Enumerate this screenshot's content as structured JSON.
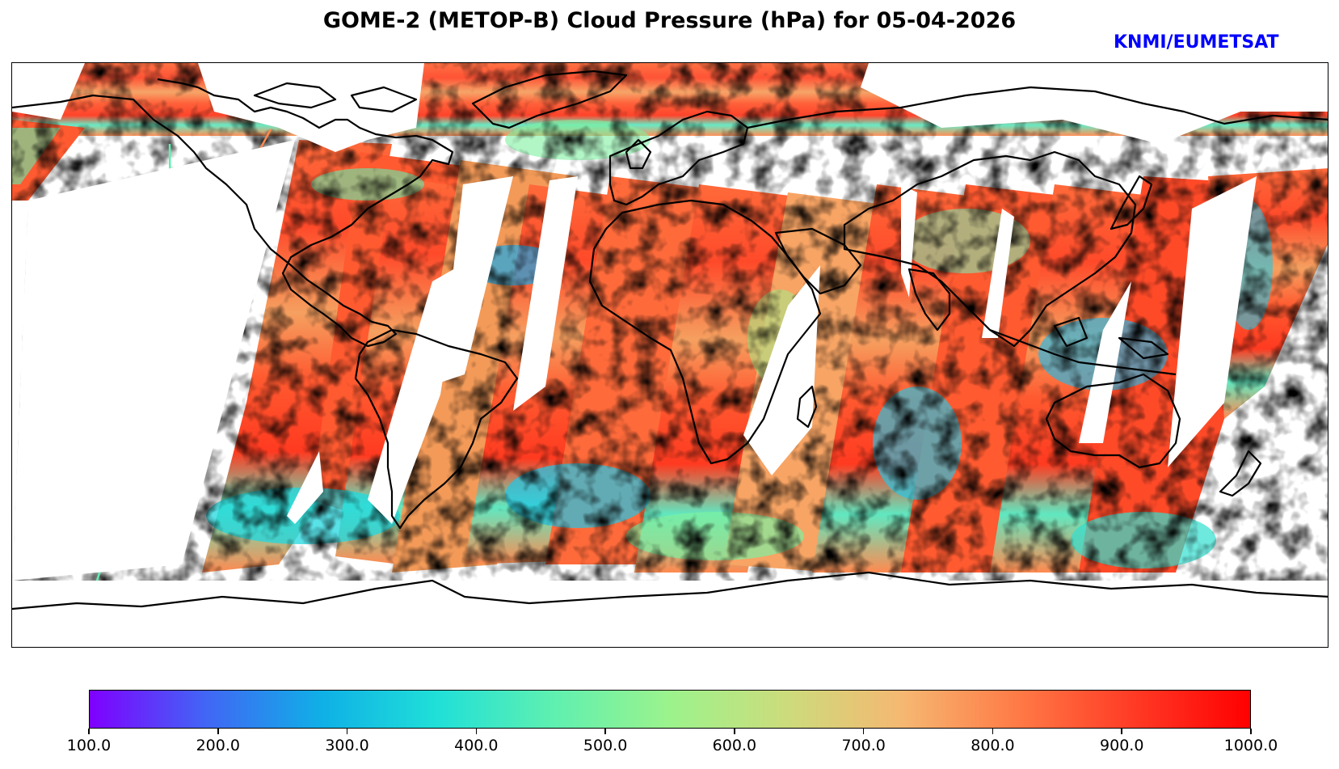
{
  "title": "GOME-2 (METOP-B) Cloud Pressure (hPa) for 05-04-2026",
  "credit": "KNMI/EUMETSAT",
  "map": {
    "variable": "Cloud Pressure",
    "units": "hPa",
    "projection": "plate-carree",
    "features": [
      "coastlines",
      "swath-data",
      "orbit-gaps"
    ],
    "coastline_color": "#000000"
  },
  "colorbar": {
    "cmap": "rainbow",
    "vmin": 100.0,
    "vmax": 1000.0,
    "stops": [
      "#7f00ff",
      "#4166f5",
      "#0fb0e6",
      "#20e0d8",
      "#5ff0b0",
      "#9cf38c",
      "#ccdc7c",
      "#f5b872",
      "#ff7a46",
      "#ff3a25",
      "#ff0000"
    ],
    "ticks": [
      {
        "value": 100.0,
        "label": "100.0"
      },
      {
        "value": 200.0,
        "label": "200.0"
      },
      {
        "value": 300.0,
        "label": "300.0"
      },
      {
        "value": 400.0,
        "label": "400.0"
      },
      {
        "value": 500.0,
        "label": "500.0"
      },
      {
        "value": 600.0,
        "label": "600.0"
      },
      {
        "value": 700.0,
        "label": "700.0"
      },
      {
        "value": 800.0,
        "label": "800.0"
      },
      {
        "value": 900.0,
        "label": "900.0"
      },
      {
        "value": 1000.0,
        "label": "1000.0"
      }
    ]
  }
}
